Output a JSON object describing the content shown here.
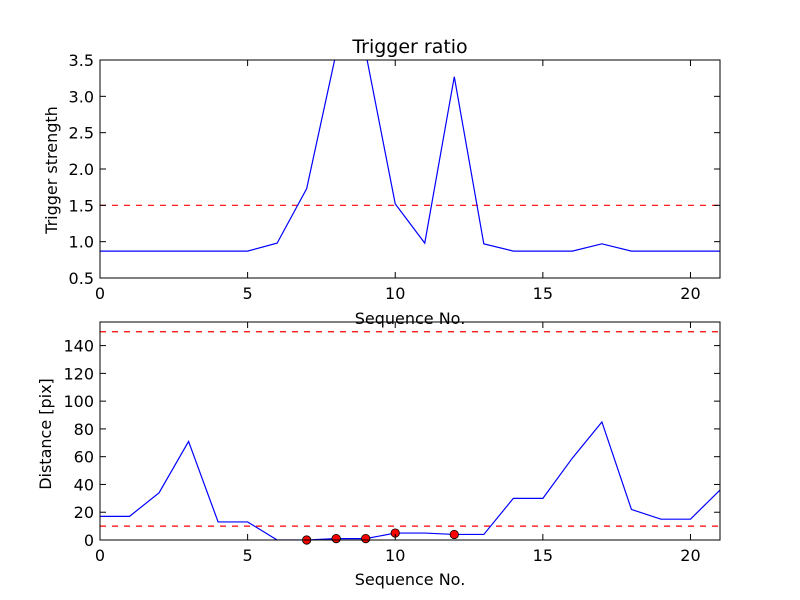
{
  "chart_data": [
    {
      "type": "line",
      "title": "Trigger ratio",
      "xlabel": "Sequence No.",
      "ylabel": "Trigger strength",
      "xlim": [
        0,
        21
      ],
      "ylim": [
        0.5,
        3.5
      ],
      "xticks": [
        0,
        5,
        10,
        15,
        20
      ],
      "yticks": [
        0.5,
        1.0,
        1.5,
        2.0,
        2.5,
        3.0,
        3.5
      ],
      "ytick_labels": [
        "0.5",
        "1.0",
        "1.5",
        "2.0",
        "2.5",
        "3.0",
        "3.5"
      ],
      "grid": false,
      "series": [
        {
          "color": "#0000ff",
          "x": [
            0,
            1,
            2,
            3,
            4,
            5,
            6,
            7,
            8,
            9,
            10,
            11,
            12,
            13,
            14,
            15,
            16,
            17,
            18,
            19,
            20,
            21
          ],
          "y": [
            0.87,
            0.87,
            0.87,
            0.87,
            0.87,
            0.87,
            0.98,
            1.73,
            3.6,
            3.6,
            1.52,
            0.98,
            3.27,
            0.97,
            0.87,
            0.87,
            0.87,
            0.97,
            0.87,
            0.87,
            0.87,
            0.87
          ]
        }
      ],
      "thresholds": [
        {
          "y": 1.5,
          "color": "#ff0000",
          "style": "dashed"
        }
      ]
    },
    {
      "type": "line",
      "title": "",
      "xlabel": "Sequence No.",
      "ylabel": "Distance [pix]",
      "xlim": [
        0,
        21
      ],
      "ylim": [
        0,
        157
      ],
      "xticks": [
        0,
        5,
        10,
        15,
        20
      ],
      "yticks": [
        0,
        20,
        40,
        60,
        80,
        100,
        120,
        140
      ],
      "ytick_labels": [
        "0",
        "20",
        "40",
        "60",
        "80",
        "100",
        "120",
        "140"
      ],
      "grid": false,
      "series": [
        {
          "color": "#0000ff",
          "x": [
            0,
            1,
            2,
            3,
            4,
            5,
            6,
            7,
            8,
            9,
            10,
            11,
            12,
            13,
            14,
            15,
            16,
            17,
            18,
            19,
            20,
            21
          ],
          "y": [
            17,
            17,
            34,
            71,
            13,
            13,
            0,
            0,
            1,
            1,
            5,
            5,
            4,
            4,
            30,
            30,
            59,
            85,
            22,
            15,
            15,
            36
          ]
        }
      ],
      "markers": {
        "color": "#ff0000",
        "x": [
          7,
          8,
          9,
          10,
          12
        ],
        "y": [
          0,
          1,
          1,
          5,
          4
        ]
      },
      "thresholds": [
        {
          "y": 150,
          "color": "#ff0000",
          "style": "dashed"
        },
        {
          "y": 10,
          "color": "#ff0000",
          "style": "dashed"
        }
      ]
    }
  ]
}
